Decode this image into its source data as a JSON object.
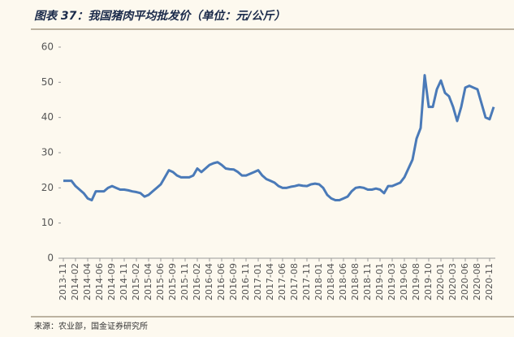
{
  "chart_data": {
    "type": "line",
    "title": "图表 37：我国猪肉平均批发价（单位：元/公斤）",
    "source": "来源：农业部，国金证券研究所",
    "categories": [
      "2013-11",
      null,
      null,
      "2014-02",
      null,
      null,
      "2014-04",
      null,
      null,
      "2014-06",
      null,
      null,
      "2014-09",
      null,
      null,
      "2014-11",
      null,
      null,
      "2015-02",
      null,
      null,
      "2015-04",
      null,
      null,
      "2015-06",
      null,
      null,
      "2015-09",
      null,
      null,
      "2015-11",
      null,
      null,
      "2016-02",
      null,
      null,
      "2016-04",
      null,
      null,
      "2016-06",
      null,
      null,
      "2016-09",
      null,
      null,
      "2016-11",
      null,
      null,
      "2017-01",
      null,
      null,
      "2017-04",
      null,
      null,
      "2017-06",
      null,
      null,
      "2017-08",
      null,
      null,
      "2017-11",
      null,
      null,
      "2018-01",
      null,
      null,
      "2018-04",
      null,
      null,
      "2018-06",
      null,
      null,
      "2018-08",
      null,
      null,
      "2018-11",
      null,
      null,
      "2019-01",
      null,
      null,
      "2019-03",
      null,
      null,
      "2019-06",
      null,
      null,
      "2019-08",
      null,
      null,
      "2019-10",
      null,
      null,
      "2020-01",
      null,
      null,
      "2020-03",
      null,
      null,
      "2020-06",
      null,
      null,
      "2020-08",
      null,
      null,
      "2020-11",
      null
    ],
    "values": [
      22,
      22,
      22,
      20.5,
      19.5,
      18.5,
      17,
      16.5,
      19,
      19,
      19,
      20,
      20.5,
      20,
      19.5,
      19.5,
      19.3,
      19,
      18.8,
      18.5,
      17.5,
      18,
      19,
      20,
      21,
      23,
      25,
      24.5,
      23.5,
      23,
      23,
      23,
      23.5,
      25.5,
      24.5,
      25.5,
      26.5,
      27,
      27.3,
      26.5,
      25.5,
      25.3,
      25.2,
      24.5,
      23.5,
      23.5,
      24,
      24.5,
      25,
      23.5,
      22.5,
      22,
      21.5,
      20.5,
      20,
      20,
      20.3,
      20.5,
      20.8,
      20.6,
      20.5,
      21,
      21.2,
      21,
      20,
      18,
      17,
      16.5,
      16.5,
      17,
      17.5,
      19,
      20,
      20.2,
      20,
      19.5,
      19.5,
      19.8,
      19.5,
      18.5,
      20.5,
      20.5,
      21,
      21.5,
      23,
      25.5,
      28,
      34,
      37,
      52,
      43,
      43,
      48,
      50.5,
      47,
      46,
      43,
      39,
      43,
      48.5,
      49,
      48.5,
      48,
      44,
      40,
      39.5,
      43
    ],
    "color": "#4a7ab8",
    "ylim": [
      0,
      60
    ],
    "yticks": [
      0,
      10,
      20,
      30,
      40,
      50,
      60
    ]
  }
}
